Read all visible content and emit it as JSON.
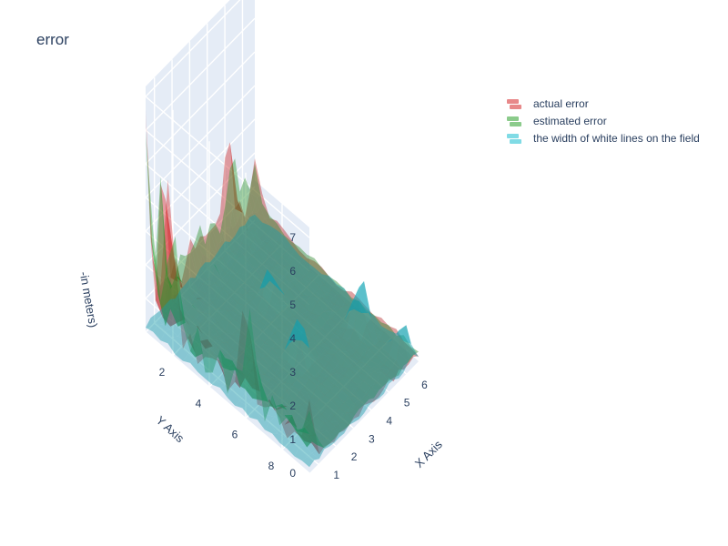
{
  "chart_data": {
    "type": "surface",
    "title": "error",
    "xlabel": "X Axis",
    "ylabel": "Y Axis",
    "zlabel": "-in meters)",
    "x_ticks": [
      1,
      2,
      3,
      4,
      5,
      6
    ],
    "y_ticks": [
      2,
      4,
      6,
      8
    ],
    "z_ticks": [
      0,
      1,
      2,
      3,
      4,
      5,
      6,
      7
    ],
    "xlim": [
      0.5,
      6.7
    ],
    "ylim": [
      0.5,
      9.5
    ],
    "zlim": [
      0,
      7.3
    ],
    "legend_position": "top-right",
    "series": [
      {
        "name": "actual error",
        "color": "#d62728"
      },
      {
        "name": "estimated error",
        "color": "#2ca02c"
      },
      {
        "name": "the width of white lines on the field",
        "color": "#17becf"
      }
    ],
    "peaks": {
      "actual error": [
        {
          "x": 0.5,
          "y": 0.5,
          "z": 7.3
        },
        {
          "x": 0.5,
          "y": 1.8,
          "z": 5.5
        },
        {
          "x": 1.5,
          "y": 0.5,
          "z": 5.2
        },
        {
          "x": 6.7,
          "y": 0.5,
          "z": 2.6
        },
        {
          "x": 5.2,
          "y": 0.5,
          "z": 4.4
        },
        {
          "x": 0.5,
          "y": 6.0,
          "z": 4.8
        },
        {
          "x": 0.5,
          "y": 9.5,
          "z": 3.0
        },
        {
          "x": 3.5,
          "y": 0.5,
          "z": 1.8
        }
      ],
      "estimated error": [
        {
          "x": 0.5,
          "y": 0.5,
          "z": 7.2
        },
        {
          "x": 0.5,
          "y": 2.0,
          "z": 5.2
        },
        {
          "x": 1.3,
          "y": 0.5,
          "z": 4.6
        },
        {
          "x": 6.6,
          "y": 0.5,
          "z": 2.1
        },
        {
          "x": 5.5,
          "y": 0.5,
          "z": 3.6
        },
        {
          "x": 0.5,
          "y": 6.3,
          "z": 4.1
        },
        {
          "x": 0.5,
          "y": 9.5,
          "z": 2.7
        },
        {
          "x": 4.0,
          "y": 0.5,
          "z": 1.3
        }
      ],
      "the width of white lines on the field": [
        {
          "x": 6.0,
          "y": 7.0,
          "z": 1.8
        },
        {
          "x": 3.5,
          "y": 6.0,
          "z": 1.5
        },
        {
          "x": 6.3,
          "y": 9.0,
          "z": 1.2
        },
        {
          "x": 4.5,
          "y": 3.5,
          "z": 1.2
        }
      ]
    }
  }
}
